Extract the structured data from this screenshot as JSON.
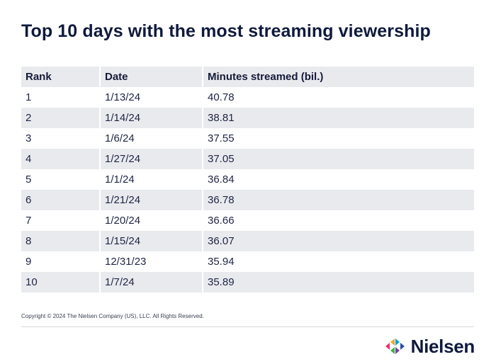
{
  "title": "Top 10 days with the most streaming viewership",
  "chart_data": {
    "type": "table",
    "title": "Top 10 days with the most streaming viewership",
    "columns": [
      "Rank",
      "Date",
      "Minutes streamed (bil.)"
    ],
    "rows": [
      [
        "1",
        "1/13/24",
        "40.78"
      ],
      [
        "2",
        "1/14/24",
        "38.81"
      ],
      [
        "3",
        "1/6/24",
        "37.55"
      ],
      [
        "4",
        "1/27/24",
        "37.05"
      ],
      [
        "5",
        "1/1/24",
        "36.84"
      ],
      [
        "6",
        "1/21/24",
        "36.78"
      ],
      [
        "7",
        "1/20/24",
        "36.66"
      ],
      [
        "8",
        "1/15/24",
        "36.07"
      ],
      [
        "9",
        "12/31/23",
        "35.94"
      ],
      [
        "10",
        "1/7/24",
        "35.89"
      ]
    ]
  },
  "footer": {
    "copyright": "Copyright © 2024 The Nielsen Company (US), LLC. All Rights Reserved.",
    "logo_text": "Nielsen",
    "logo_icon": "nielsen-logo-icon",
    "logo_colors": [
      "#e8336d",
      "#f5a623",
      "#3bb54a",
      "#00a1de",
      "#7b3fa0",
      "#2a4fa0"
    ]
  }
}
